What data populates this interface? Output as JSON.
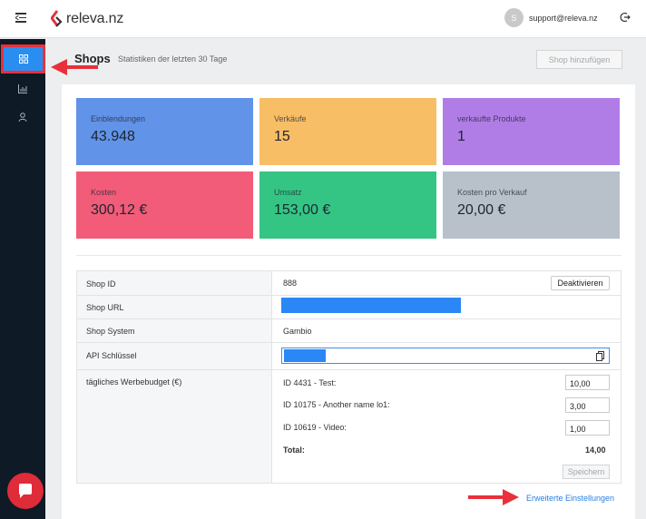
{
  "header": {
    "brand": "releva.nz",
    "brand_dot": ".",
    "user_initial": "S",
    "user_email": "support@releva.nz"
  },
  "page": {
    "title": "Shops",
    "subtitle": "Statistiken der letzten 30 Tage",
    "add_button": "Shop hinzufügen"
  },
  "stats": [
    {
      "label": "Einblendungen",
      "value": "43.948",
      "color": "#6193e8"
    },
    {
      "label": "Verkäufe",
      "value": "15",
      "color": "#f8be66"
    },
    {
      "label": "verkaufte Produkte",
      "value": "1",
      "color": "#b07de6"
    },
    {
      "label": "Kosten",
      "value": "300,12 €",
      "color": "#f25c78"
    },
    {
      "label": "Umsatz",
      "value": "153,00 €",
      "color": "#34c585"
    },
    {
      "label": "Kosten pro Verkauf",
      "value": "20,00 €",
      "color": "#b8c0ca"
    }
  ],
  "details": {
    "shop_id_label": "Shop ID",
    "shop_id_value": "888",
    "deactivate_button": "Deaktivieren",
    "shop_url_label": "Shop URL",
    "shop_system_label": "Shop System",
    "shop_system_value": "Gambio",
    "api_key_label": "API Schlüssel",
    "budget_label": "tägliches Werbebudget (€)",
    "budgets": [
      {
        "name": "ID 4431 - Test:",
        "value": "10,00"
      },
      {
        "name": "ID 10175 - Another name lo1:",
        "value": "3,00"
      },
      {
        "name": "ID 10619 - Video:",
        "value": "1,00"
      }
    ],
    "total_label": "Total:",
    "total_value": "14,00",
    "save_button": "Speichern"
  },
  "advanced_link": "Erweiterte Einstellungen",
  "colors": {
    "accent": "#2a8ef0",
    "brand_red": "#e8313b",
    "sidebar_bg": "#0e1a26"
  },
  "icons": {
    "menu": "menu-collapse-icon",
    "logout": "logout-icon",
    "dashboard": "grid-icon",
    "stats": "bar-chart-icon",
    "user": "user-icon",
    "chat": "chat-icon",
    "copy": "copy-icon"
  }
}
